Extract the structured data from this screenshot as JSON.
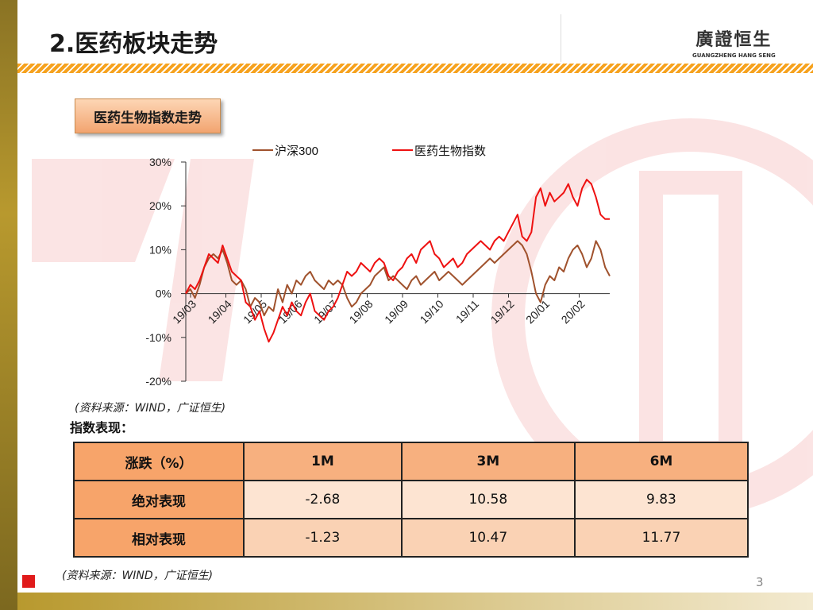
{
  "header": {
    "title": "2.医药板块走势",
    "logo_cn": "廣證恒生",
    "logo_en": "GUANGZHENG HANG SENG"
  },
  "section_label": "医药生物指数走势",
  "chart_data": {
    "type": "line",
    "x_ticks": [
      "19/03",
      "19/04",
      "19/05",
      "19/06",
      "19/07",
      "19/08",
      "19/09",
      "19/10",
      "19/11",
      "19/12",
      "20/01",
      "20/02"
    ],
    "y_ticks": [
      "30%",
      "20%",
      "10%",
      "0%",
      "-10%",
      "-20%"
    ],
    "ylim": [
      -20,
      30
    ],
    "legend_position": "top",
    "series": [
      {
        "name": "沪深300",
        "color": "#a0522d",
        "values": [
          0,
          1,
          -1,
          2,
          6,
          8,
          9,
          8,
          10,
          7,
          3,
          2,
          3,
          1,
          -3,
          -1,
          -2,
          -5,
          -3,
          -4,
          1,
          -2,
          2,
          0,
          3,
          2,
          4,
          5,
          3,
          2,
          1,
          3,
          2,
          3,
          2,
          -1,
          -3,
          -2,
          0,
          1,
          2,
          4,
          5,
          6,
          3,
          4,
          3,
          2,
          1,
          3,
          4,
          2,
          3,
          4,
          5,
          3,
          4,
          5,
          4,
          3,
          2,
          3,
          4,
          5,
          6,
          7,
          8,
          7,
          8,
          9,
          10,
          11,
          12,
          11,
          9,
          5,
          0,
          -2,
          2,
          4,
          3,
          6,
          5,
          8,
          10,
          11,
          9,
          6,
          8,
          12,
          10,
          6,
          4
        ]
      },
      {
        "name": "医药生物指数",
        "color": "#ee1111",
        "values": [
          0,
          2,
          1,
          3,
          6,
          9,
          8,
          7,
          11,
          8,
          5,
          4,
          3,
          -2,
          -3,
          -6,
          -4,
          -8,
          -11,
          -9,
          -6,
          -3,
          -5,
          -2,
          -4,
          -5,
          -2,
          0,
          -4,
          -5,
          -6,
          -4,
          -3,
          -1,
          2,
          5,
          4,
          5,
          7,
          6,
          5,
          7,
          8,
          7,
          4,
          3,
          5,
          6,
          8,
          9,
          7,
          10,
          11,
          12,
          9,
          8,
          6,
          7,
          8,
          6,
          7,
          9,
          10,
          11,
          12,
          11,
          10,
          12,
          13,
          12,
          14,
          16,
          18,
          13,
          12,
          14,
          22,
          24,
          20,
          23,
          21,
          22,
          23,
          25,
          22,
          20,
          24,
          26,
          25,
          22,
          18,
          17,
          17
        ]
      }
    ]
  },
  "source1": "(资料来源：WIND，广证恒生)",
  "subhead": "指数表现：",
  "table": {
    "header": [
      "涨跌（%）",
      "1M",
      "3M",
      "6M"
    ],
    "rows": [
      [
        "绝对表现",
        "-2.68",
        "10.58",
        "9.83"
      ],
      [
        "相对表现",
        "-1.23",
        "10.47",
        "11.77"
      ]
    ]
  },
  "source2": "(资料来源：WIND，广证恒生)",
  "page_number": "3"
}
